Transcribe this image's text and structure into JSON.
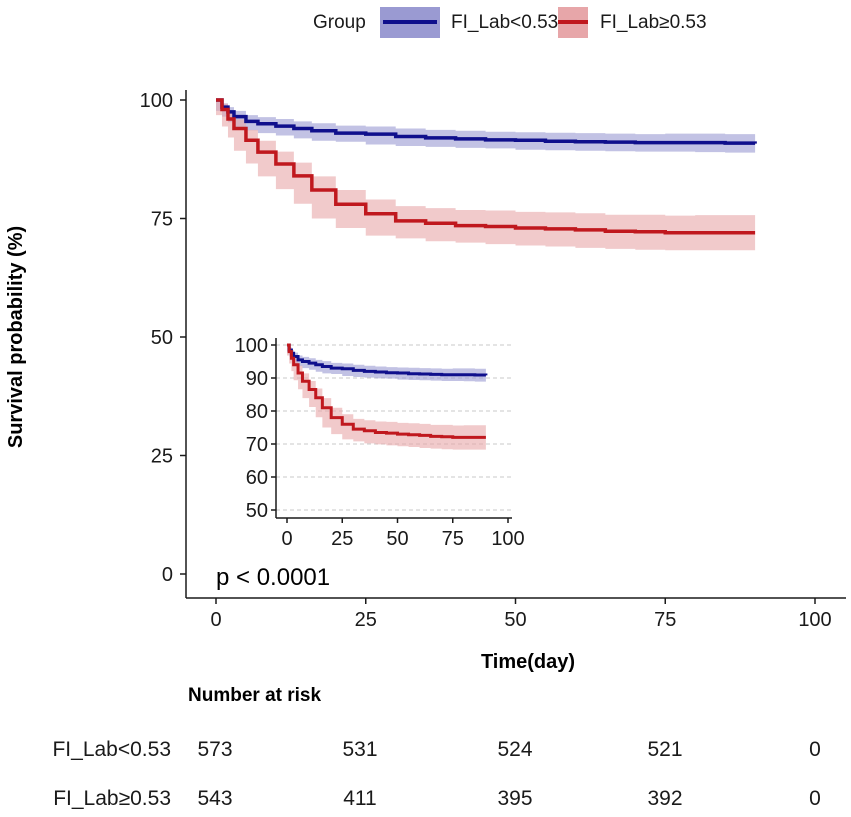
{
  "chart_data": [
    {
      "type": "line",
      "subtype": "kaplan-meier",
      "xlabel": "Time(day)",
      "ylabel": "Survival probability (%)",
      "xlim": [
        0,
        100
      ],
      "ylim": [
        0,
        100
      ],
      "xticks": [
        0,
        25,
        50,
        75,
        100
      ],
      "yticks": [
        0,
        25,
        50,
        75,
        100
      ],
      "grid": false,
      "legend": {
        "position": "top",
        "title": "Group"
      },
      "annotation": "p < 0.0001",
      "series": [
        {
          "name": "FI_Lab<0.53",
          "color": "#0f0f8c",
          "band_color": "#9a9ad2",
          "x": [
            0,
            1,
            2,
            3,
            5,
            7,
            10,
            13,
            16,
            20,
            25,
            30,
            35,
            40,
            45,
            50,
            55,
            60,
            65,
            70,
            75,
            80,
            85,
            90
          ],
          "y": [
            100,
            98.5,
            97.5,
            96.5,
            95.5,
            95,
            94.5,
            94,
            93.5,
            93,
            92.8,
            92.3,
            92,
            91.8,
            91.6,
            91.5,
            91.3,
            91.2,
            91.1,
            91,
            91,
            91,
            90.9,
            90.8
          ],
          "lower": [
            100,
            97.7,
            96.5,
            95.3,
            94.2,
            93.6,
            93,
            92.5,
            91.9,
            91.4,
            91.2,
            90.6,
            90.3,
            90.1,
            89.9,
            89.8,
            89.5,
            89.4,
            89.3,
            89.2,
            89.1,
            89.1,
            89,
            88.9
          ],
          "upper": [
            100,
            99.3,
            98.5,
            97.7,
            96.8,
            96.4,
            96,
            95.5,
            95.1,
            94.6,
            94.4,
            94,
            93.7,
            93.5,
            93.3,
            93.2,
            93.1,
            93,
            92.9,
            92.8,
            92.9,
            92.9,
            92.8,
            92.7
          ]
        },
        {
          "name": "FI_Lab≥0.53",
          "color": "#c0181e",
          "band_color": "#e7a6a9",
          "x": [
            0,
            1,
            2,
            3,
            5,
            7,
            10,
            13,
            16,
            20,
            25,
            30,
            35,
            40,
            45,
            50,
            55,
            60,
            65,
            70,
            75,
            80,
            85,
            90
          ],
          "y": [
            100,
            98,
            96,
            94,
            91.5,
            89,
            86.5,
            84,
            81,
            78,
            76,
            74.5,
            74,
            73.5,
            73.3,
            73,
            72.8,
            72.6,
            72.3,
            72.2,
            72,
            72,
            72,
            72
          ],
          "lower": [
            100,
            96.8,
            94.4,
            92.1,
            89.3,
            86.6,
            83.9,
            81.2,
            78.1,
            75,
            73,
            71.4,
            70.8,
            70.2,
            69.9,
            69.6,
            69.3,
            69.1,
            68.8,
            68.6,
            68.4,
            68.3,
            68.3,
            68.3
          ],
          "upper": [
            100,
            99.2,
            97.6,
            95.9,
            93.7,
            91.4,
            89.1,
            86.8,
            83.9,
            81,
            79,
            77.6,
            77.2,
            76.8,
            76.7,
            76.4,
            76.3,
            76.1,
            75.8,
            75.8,
            75.6,
            75.7,
            75.7,
            75.7
          ]
        }
      ]
    },
    {
      "type": "line",
      "subtype": "kaplan-meier-inset",
      "xlim": [
        0,
        100
      ],
      "ylim": [
        48,
        100
      ],
      "xticks": [
        0,
        25,
        50,
        75,
        100
      ],
      "yticks": [
        50,
        60,
        70,
        80,
        90,
        100
      ],
      "grid": true,
      "series_ref": [
        "FI_Lab<0.53",
        "FI_Lab≥0.53"
      ]
    }
  ],
  "risk_table": {
    "title": "Number at risk",
    "times": [
      0,
      25,
      50,
      75,
      100
    ],
    "rows": [
      {
        "label": "FI_Lab<0.53",
        "values": [
          "573",
          "531",
          "524",
          "521",
          "0"
        ]
      },
      {
        "label": "FI_Lab≥0.53",
        "values": [
          "543",
          "411",
          "395",
          "392",
          "0"
        ]
      }
    ]
  }
}
